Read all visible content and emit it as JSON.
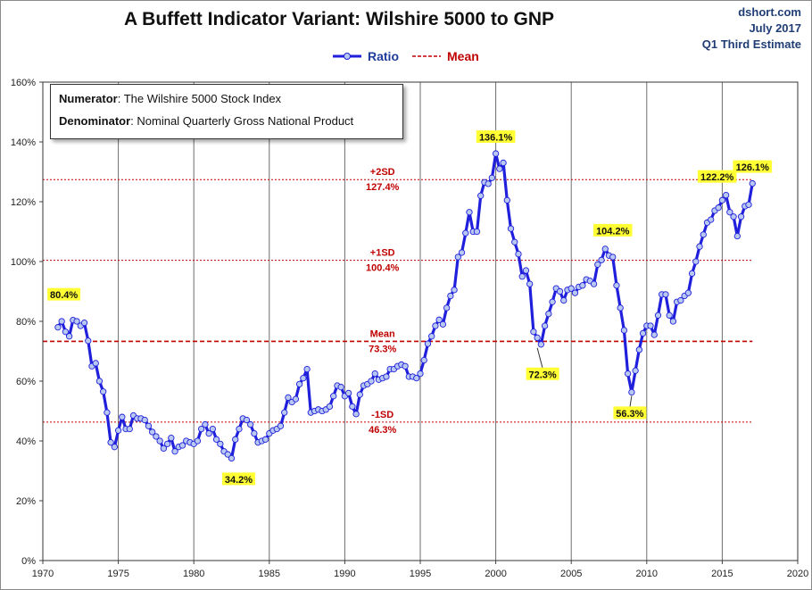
{
  "header": {
    "title": "A Buffett Indicator Variant: Wilshire 5000 to GNP",
    "source": "dshort.com",
    "date": "July 2017",
    "note": "Q1 Third Estimate"
  },
  "legend": {
    "ratio_label": "Ratio",
    "mean_label": "Mean"
  },
  "note_box": {
    "numerator_label": "Numerator",
    "numerator_text": ": The Wilshire 5000 Stock Index",
    "denominator_label": "Denominator",
    "denominator_text": ": Nominal Quarterly Gross National Product"
  },
  "chart_data": {
    "type": "line",
    "title": "A Buffett Indicator Variant: Wilshire 5000 to GNP",
    "xlabel": "",
    "ylabel": "",
    "xlim": [
      1970,
      2020
    ],
    "ylim": [
      0,
      160
    ],
    "x_ticks": [
      "1970",
      "1975",
      "1980",
      "1985",
      "1990",
      "1995",
      "2000",
      "2005",
      "2010",
      "2015",
      "2020"
    ],
    "y_ticks": [
      "0%",
      "20%",
      "40%",
      "60%",
      "80%",
      "100%",
      "120%",
      "140%",
      "160%"
    ],
    "grid": "vertical gridlines every 5 years",
    "legend_position": "top-center",
    "colors": {
      "ratio": "#1f1fdc",
      "marker_fill": "#b8c8f0",
      "mean": "#c00000",
      "annotation_bg": "#ffff33"
    },
    "reference_lines": [
      {
        "label": "+2SD",
        "value_label": "127.4%",
        "value": 127.4,
        "style": "dotted"
      },
      {
        "label": "+1SD",
        "value_label": "100.4%",
        "value": 100.4,
        "style": "dotted"
      },
      {
        "label": "Mean",
        "value_label": "73.3%",
        "value": 73.3,
        "style": "dashed"
      },
      {
        "label": "-1SD",
        "value_label": "46.3%",
        "value": 46.3,
        "style": "dotted"
      }
    ],
    "annotations": [
      {
        "text": "80.4%",
        "x": 1971.75,
        "y": 80.4
      },
      {
        "text": "34.2%",
        "x": 1982.5,
        "y": 34.2
      },
      {
        "text": "136.1%",
        "x": 2000.0,
        "y": 136.1
      },
      {
        "text": "72.3%",
        "x": 2002.75,
        "y": 72.3
      },
      {
        "text": "104.2%",
        "x": 2007.75,
        "y": 104.2
      },
      {
        "text": "56.3%",
        "x": 2009.0,
        "y": 56.3
      },
      {
        "text": "122.2%",
        "x": 2015.25,
        "y": 122.2
      },
      {
        "text": "126.1%",
        "x": 2017.0,
        "y": 126.1
      }
    ],
    "series": [
      {
        "name": "Ratio",
        "points": [
          [
            1971.0,
            78.0
          ],
          [
            1971.25,
            80.0
          ],
          [
            1971.5,
            76.5
          ],
          [
            1971.75,
            75.0
          ],
          [
            1972.0,
            80.4
          ],
          [
            1972.25,
            80.0
          ],
          [
            1972.5,
            78.5
          ],
          [
            1972.75,
            79.5
          ],
          [
            1973.0,
            73.5
          ],
          [
            1973.25,
            65.0
          ],
          [
            1973.5,
            66.0
          ],
          [
            1973.75,
            60.0
          ],
          [
            1974.0,
            56.5
          ],
          [
            1974.25,
            49.5
          ],
          [
            1974.5,
            39.5
          ],
          [
            1974.75,
            38.0
          ],
          [
            1975.0,
            43.5
          ],
          [
            1975.25,
            48.0
          ],
          [
            1975.5,
            44.0
          ],
          [
            1975.75,
            44.0
          ],
          [
            1976.0,
            48.5
          ],
          [
            1976.25,
            47.5
          ],
          [
            1976.5,
            47.5
          ],
          [
            1976.75,
            47.0
          ],
          [
            1977.0,
            45.0
          ],
          [
            1977.25,
            43.0
          ],
          [
            1977.5,
            41.5
          ],
          [
            1977.75,
            40.0
          ],
          [
            1978.0,
            37.5
          ],
          [
            1978.25,
            39.0
          ],
          [
            1978.5,
            41.0
          ],
          [
            1978.75,
            36.5
          ],
          [
            1979.0,
            38.0
          ],
          [
            1979.25,
            38.5
          ],
          [
            1979.5,
            40.0
          ],
          [
            1979.75,
            39.5
          ],
          [
            1980.0,
            39.0
          ],
          [
            1980.25,
            40.0
          ],
          [
            1980.5,
            44.0
          ],
          [
            1980.75,
            45.5
          ],
          [
            1981.0,
            42.5
          ],
          [
            1981.25,
            44.0
          ],
          [
            1981.5,
            40.5
          ],
          [
            1981.75,
            39.0
          ],
          [
            1982.0,
            36.5
          ],
          [
            1982.25,
            35.5
          ],
          [
            1982.5,
            34.2
          ],
          [
            1982.75,
            40.5
          ],
          [
            1983.0,
            44.0
          ],
          [
            1983.25,
            47.5
          ],
          [
            1983.5,
            47.0
          ],
          [
            1983.75,
            45.5
          ],
          [
            1984.0,
            42.5
          ],
          [
            1984.25,
            39.5
          ],
          [
            1984.5,
            40.0
          ],
          [
            1984.75,
            40.5
          ],
          [
            1985.0,
            42.5
          ],
          [
            1985.25,
            43.5
          ],
          [
            1985.5,
            44.0
          ],
          [
            1985.75,
            45.0
          ],
          [
            1986.0,
            49.5
          ],
          [
            1986.25,
            54.5
          ],
          [
            1986.5,
            53.0
          ],
          [
            1986.75,
            54.0
          ],
          [
            1987.0,
            59.0
          ],
          [
            1987.25,
            61.0
          ],
          [
            1987.5,
            64.0
          ],
          [
            1987.75,
            49.5
          ],
          [
            1988.0,
            50.0
          ],
          [
            1988.25,
            50.5
          ],
          [
            1988.5,
            50.0
          ],
          [
            1988.75,
            50.5
          ],
          [
            1989.0,
            51.5
          ],
          [
            1989.25,
            55.0
          ],
          [
            1989.5,
            58.5
          ],
          [
            1989.75,
            58.0
          ],
          [
            1990.0,
            55.0
          ],
          [
            1990.25,
            56.0
          ],
          [
            1990.5,
            51.5
          ],
          [
            1990.75,
            49.0
          ],
          [
            1991.0,
            55.5
          ],
          [
            1991.25,
            58.5
          ],
          [
            1991.5,
            59.0
          ],
          [
            1991.75,
            60.0
          ],
          [
            1992.0,
            62.5
          ],
          [
            1992.25,
            60.5
          ],
          [
            1992.5,
            61.0
          ],
          [
            1992.75,
            61.5
          ],
          [
            1993.0,
            64.0
          ],
          [
            1993.25,
            64.0
          ],
          [
            1993.5,
            65.0
          ],
          [
            1993.75,
            65.5
          ],
          [
            1994.0,
            65.0
          ],
          [
            1994.25,
            61.5
          ],
          [
            1994.5,
            61.5
          ],
          [
            1994.75,
            61.0
          ],
          [
            1995.0,
            62.5
          ],
          [
            1995.25,
            67.0
          ],
          [
            1995.5,
            72.5
          ],
          [
            1995.75,
            75.0
          ],
          [
            1996.0,
            78.5
          ],
          [
            1996.25,
            80.5
          ],
          [
            1996.5,
            79.0
          ],
          [
            1996.75,
            84.5
          ],
          [
            1997.0,
            88.5
          ],
          [
            1997.25,
            90.5
          ],
          [
            1997.5,
            101.5
          ],
          [
            1997.75,
            103.0
          ],
          [
            1998.0,
            109.5
          ],
          [
            1998.25,
            116.5
          ],
          [
            1998.5,
            110.0
          ],
          [
            1998.75,
            110.0
          ],
          [
            1999.0,
            122.0
          ],
          [
            1999.25,
            126.5
          ],
          [
            1999.5,
            126.0
          ],
          [
            1999.75,
            128.0
          ],
          [
            2000.0,
            136.1
          ],
          [
            2000.25,
            131.0
          ],
          [
            2000.5,
            133.0
          ],
          [
            2000.75,
            120.5
          ],
          [
            2001.0,
            111.0
          ],
          [
            2001.25,
            106.5
          ],
          [
            2001.5,
            102.5
          ],
          [
            2001.75,
            95.0
          ],
          [
            2002.0,
            97.0
          ],
          [
            2002.25,
            92.5
          ],
          [
            2002.5,
            76.5
          ],
          [
            2002.75,
            74.5
          ],
          [
            2003.0,
            72.3
          ],
          [
            2003.25,
            78.5
          ],
          [
            2003.5,
            82.5
          ],
          [
            2003.75,
            86.5
          ],
          [
            2004.0,
            91.0
          ],
          [
            2004.25,
            90.0
          ],
          [
            2004.5,
            87.0
          ],
          [
            2004.75,
            90.5
          ],
          [
            2005.0,
            91.0
          ],
          [
            2005.25,
            89.5
          ],
          [
            2005.5,
            91.5
          ],
          [
            2005.75,
            92.0
          ],
          [
            2006.0,
            94.0
          ],
          [
            2006.25,
            93.5
          ],
          [
            2006.5,
            92.5
          ],
          [
            2006.75,
            99.0
          ],
          [
            2007.0,
            100.5
          ],
          [
            2007.25,
            104.2
          ],
          [
            2007.5,
            102.0
          ],
          [
            2007.75,
            101.5
          ],
          [
            2008.0,
            92.0
          ],
          [
            2008.25,
            84.5
          ],
          [
            2008.5,
            77.0
          ],
          [
            2008.75,
            62.5
          ],
          [
            2009.0,
            56.3
          ],
          [
            2009.25,
            63.5
          ],
          [
            2009.5,
            70.5
          ],
          [
            2009.75,
            76.0
          ],
          [
            2010.0,
            78.5
          ],
          [
            2010.25,
            78.5
          ],
          [
            2010.5,
            75.5
          ],
          [
            2010.75,
            82.0
          ],
          [
            2011.0,
            89.0
          ],
          [
            2011.25,
            89.0
          ],
          [
            2011.5,
            82.0
          ],
          [
            2011.75,
            80.0
          ],
          [
            2012.0,
            86.5
          ],
          [
            2012.25,
            87.0
          ],
          [
            2012.5,
            88.5
          ],
          [
            2012.75,
            89.5
          ],
          [
            2013.0,
            96.0
          ],
          [
            2013.25,
            100.0
          ],
          [
            2013.5,
            105.0
          ],
          [
            2013.75,
            109.0
          ],
          [
            2014.0,
            113.0
          ],
          [
            2014.25,
            114.0
          ],
          [
            2014.5,
            117.0
          ],
          [
            2014.75,
            118.0
          ],
          [
            2015.0,
            120.5
          ],
          [
            2015.25,
            122.2
          ],
          [
            2015.5,
            116.5
          ],
          [
            2015.75,
            115.0
          ],
          [
            2016.0,
            108.5
          ],
          [
            2016.25,
            115.0
          ],
          [
            2016.5,
            118.5
          ],
          [
            2016.75,
            119.0
          ],
          [
            2017.0,
            126.1
          ]
        ]
      }
    ]
  }
}
